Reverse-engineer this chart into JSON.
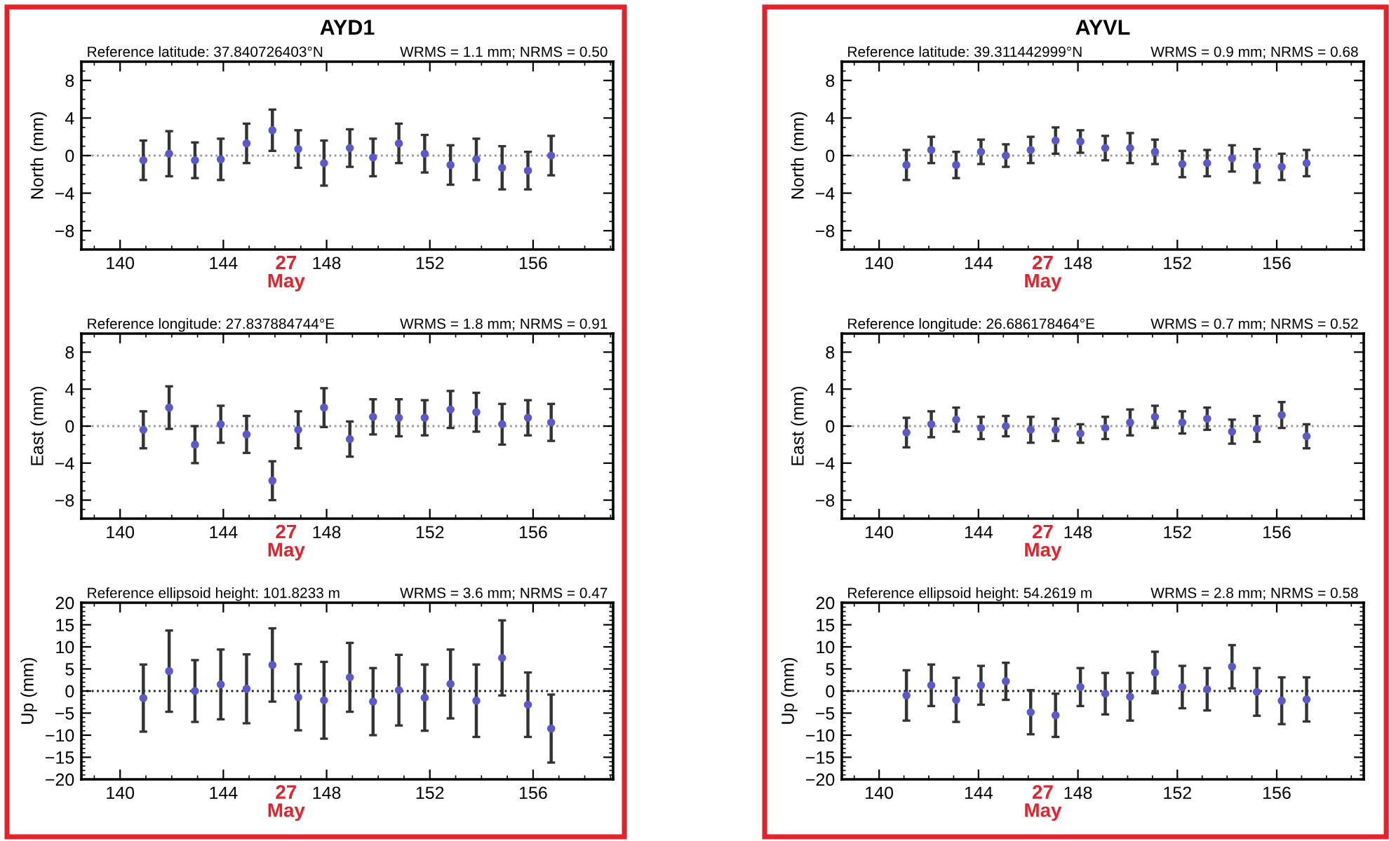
{
  "chart_data": [
    {
      "type": "scatter",
      "title": "AYD1",
      "subtitle": "Reference latitude: 37.840726403°N",
      "ylabel": "North (mm)",
      "annotations": [
        "WRMS = 1.1 mm; NRMS = 0.50",
        "27\nMay"
      ],
      "marker": "circle",
      "legend": false,
      "grid": false,
      "x": [
        140.9,
        141.9,
        142.9,
        143.9,
        144.9,
        145.9,
        146.9,
        147.9,
        148.9,
        149.8,
        150.8,
        151.8,
        152.8,
        153.8,
        154.8,
        155.8,
        156.7
      ],
      "series": [
        {
          "color": "#5a5acd",
          "values": [
            -0.5,
            0.2,
            -0.5,
            -0.4,
            1.3,
            2.7,
            0.7,
            -0.8,
            0.8,
            -0.2,
            1.3,
            0.2,
            -1.0,
            -0.4,
            -1.3,
            -1.6,
            0.0
          ],
          "errors": [
            2.1,
            2.4,
            1.9,
            2.2,
            2.1,
            2.2,
            2.0,
            2.4,
            2.0,
            2.0,
            2.1,
            2.0,
            2.1,
            2.2,
            2.3,
            2.0,
            2.1
          ]
        }
      ],
      "xlim": [
        138.5,
        159.1
      ],
      "xticks": [
        140,
        144,
        148,
        152,
        156
      ],
      "ylim": [
        -10,
        10
      ],
      "yticks": [
        -8,
        -4,
        0,
        4,
        8
      ],
      "ref_lines": [
        {
          "axis": "y",
          "value": 0,
          "color": "#999999",
          "line_style": "dotted"
        }
      ]
    },
    {
      "type": "scatter",
      "subtitle": "Reference longitude: 27.837884744°E",
      "ylabel": "East (mm)",
      "annotations": [
        "WRMS = 1.8 mm; NRMS = 0.91",
        "27\nMay"
      ],
      "marker": "circle",
      "legend": false,
      "grid": false,
      "x": [
        140.9,
        141.9,
        142.9,
        143.9,
        144.9,
        145.9,
        146.9,
        147.9,
        148.9,
        149.8,
        150.8,
        151.8,
        152.8,
        153.8,
        154.8,
        155.8,
        156.7
      ],
      "series": [
        {
          "color": "#5a5acd",
          "values": [
            -0.4,
            2.0,
            -2.0,
            0.2,
            -0.9,
            -5.9,
            -0.4,
            2.0,
            -1.4,
            1.0,
            0.9,
            0.9,
            1.8,
            1.5,
            0.2,
            0.9,
            0.4
          ],
          "errors": [
            2.0,
            2.3,
            2.0,
            2.0,
            2.0,
            2.1,
            2.0,
            2.1,
            1.9,
            1.9,
            2.0,
            1.9,
            2.0,
            2.1,
            2.2,
            1.9,
            2.0
          ]
        }
      ],
      "xlim": [
        138.5,
        159.1
      ],
      "xticks": [
        140,
        144,
        148,
        152,
        156
      ],
      "ylim": [
        -10,
        10
      ],
      "yticks": [
        -8,
        -4,
        0,
        4,
        8
      ],
      "ref_lines": [
        {
          "axis": "y",
          "value": 0,
          "color": "#999999",
          "line_style": "dotted"
        }
      ]
    },
    {
      "type": "scatter",
      "subtitle": "Reference ellipsoid height: 101.8233 m",
      "ylabel": "Up (mm)",
      "annotations": [
        "WRMS = 3.6 mm; NRMS = 0.47",
        "27\nMay"
      ],
      "marker": "circle",
      "legend": false,
      "grid": false,
      "x": [
        140.9,
        141.9,
        142.9,
        143.9,
        144.9,
        145.9,
        146.9,
        147.9,
        148.9,
        149.8,
        150.8,
        151.8,
        152.8,
        153.8,
        154.8,
        155.8,
        156.7
      ],
      "series": [
        {
          "color": "#5a5acd",
          "values": [
            -1.6,
            4.5,
            0.0,
            1.5,
            0.5,
            5.9,
            -1.4,
            -2.1,
            3.1,
            -2.4,
            0.2,
            -1.5,
            1.6,
            -2.2,
            7.5,
            -3.1,
            -8.5
          ],
          "errors": [
            7.6,
            9.2,
            7.0,
            7.9,
            7.8,
            8.3,
            7.5,
            8.7,
            7.8,
            7.6,
            8.0,
            7.5,
            7.8,
            8.2,
            8.5,
            7.3,
            7.7
          ]
        }
      ],
      "xlim": [
        138.5,
        159.1
      ],
      "xticks": [
        140,
        144,
        148,
        152,
        156
      ],
      "ylim": [
        -20,
        20
      ],
      "yticks": [
        -20,
        -15,
        -10,
        -5,
        0,
        5,
        10,
        15,
        20
      ],
      "ref_lines": [
        {
          "axis": "y",
          "value": 0,
          "color": "#222222",
          "line_style": "dotted"
        }
      ]
    },
    {
      "type": "scatter",
      "title": "AYVL",
      "subtitle": "Reference latitude: 39.311442999°N",
      "ylabel": "North (mm)",
      "annotations": [
        "WRMS = 0.9 mm; NRMS = 0.68",
        "27\nMay"
      ],
      "marker": "circle",
      "legend": false,
      "grid": false,
      "x": [
        141.1,
        142.1,
        143.1,
        144.1,
        145.1,
        146.1,
        147.1,
        148.1,
        149.1,
        150.1,
        151.1,
        152.2,
        153.2,
        154.2,
        155.2,
        156.2,
        157.2
      ],
      "series": [
        {
          "color": "#5a5acd",
          "values": [
            -1.0,
            0.6,
            -1.0,
            0.4,
            0.0,
            0.6,
            1.6,
            1.5,
            0.8,
            0.8,
            0.4,
            -0.9,
            -0.8,
            -0.3,
            -1.1,
            -1.2,
            -0.8
          ],
          "errors": [
            1.6,
            1.4,
            1.4,
            1.3,
            1.2,
            1.4,
            1.4,
            1.2,
            1.3,
            1.6,
            1.3,
            1.4,
            1.4,
            1.4,
            1.8,
            1.4,
            1.4
          ]
        }
      ],
      "xlim": [
        138.5,
        159.5
      ],
      "xticks": [
        140,
        144,
        148,
        152,
        156
      ],
      "ylim": [
        -10,
        10
      ],
      "yticks": [
        -8,
        -4,
        0,
        4,
        8
      ],
      "ref_lines": [
        {
          "axis": "y",
          "value": 0,
          "color": "#999999",
          "line_style": "dotted"
        }
      ]
    },
    {
      "type": "scatter",
      "subtitle": "Reference longitude: 26.686178464°E",
      "ylabel": "East (mm)",
      "annotations": [
        "WRMS = 0.7 mm; NRMS = 0.52",
        "27\nMay"
      ],
      "marker": "circle",
      "legend": false,
      "grid": false,
      "x": [
        141.1,
        142.1,
        143.1,
        144.1,
        145.1,
        146.1,
        147.1,
        148.1,
        149.1,
        150.1,
        151.1,
        152.2,
        153.2,
        154.2,
        155.2,
        156.2,
        157.2
      ],
      "series": [
        {
          "color": "#5a5acd",
          "values": [
            -0.7,
            0.2,
            0.7,
            -0.2,
            0.0,
            -0.4,
            -0.4,
            -0.8,
            -0.2,
            0.4,
            1.0,
            0.4,
            0.8,
            -0.6,
            -0.3,
            1.2,
            -1.1
          ],
          "errors": [
            1.6,
            1.4,
            1.3,
            1.2,
            1.1,
            1.4,
            1.2,
            1.0,
            1.2,
            1.4,
            1.2,
            1.2,
            1.2,
            1.3,
            1.4,
            1.4,
            1.3
          ]
        }
      ],
      "xlim": [
        138.5,
        159.5
      ],
      "xticks": [
        140,
        144,
        148,
        152,
        156
      ],
      "ylim": [
        -10,
        10
      ],
      "yticks": [
        -8,
        -4,
        0,
        4,
        8
      ],
      "ref_lines": [
        {
          "axis": "y",
          "value": 0,
          "color": "#999999",
          "line_style": "dotted"
        }
      ]
    },
    {
      "type": "scatter",
      "subtitle": "Reference ellipsoid height: 54.2619 m",
      "ylabel": "Up (mm)",
      "annotations": [
        "WRMS = 2.8 mm; NRMS = 0.58",
        "27\nMay"
      ],
      "marker": "circle",
      "legend": false,
      "grid": false,
      "x": [
        141.1,
        142.1,
        143.1,
        144.1,
        145.1,
        146.1,
        147.1,
        148.1,
        149.1,
        150.1,
        151.1,
        152.2,
        153.2,
        154.2,
        155.2,
        156.2,
        157.2
      ],
      "series": [
        {
          "color": "#5a5acd",
          "values": [
            -1.0,
            1.3,
            -2.0,
            1.3,
            2.2,
            -4.8,
            -5.5,
            0.9,
            -0.6,
            -1.3,
            4.2,
            0.9,
            0.4,
            5.5,
            -0.2,
            -2.2,
            -1.9
          ],
          "errors": [
            5.7,
            4.7,
            5.0,
            4.4,
            4.2,
            5.0,
            4.9,
            4.3,
            4.7,
            5.4,
            4.7,
            4.8,
            4.8,
            4.9,
            5.4,
            5.3,
            5.0
          ]
        }
      ],
      "xlim": [
        138.5,
        159.5
      ],
      "xticks": [
        140,
        144,
        148,
        152,
        156
      ],
      "ylim": [
        -20,
        20
      ],
      "yticks": [
        -20,
        -15,
        -10,
        -5,
        0,
        5,
        10,
        15,
        20
      ],
      "ref_lines": [
        {
          "axis": "y",
          "value": 0,
          "color": "#222222",
          "line_style": "dotted"
        }
      ]
    }
  ]
}
